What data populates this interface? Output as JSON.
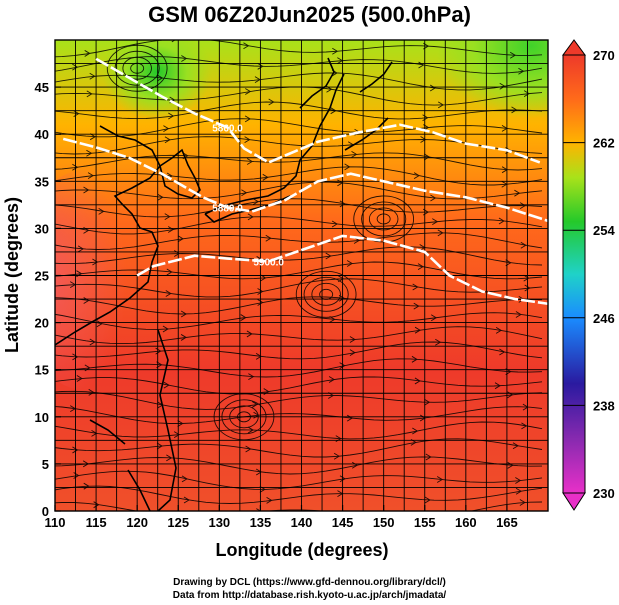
{
  "title": "GSM 06Z20Jun2025 (500.0hPa)",
  "xlabel": "Longitude (degrees)",
  "ylabel": "Latitude  (degrees)",
  "x_ticks": [
    "110",
    "115",
    "120",
    "125",
    "130",
    "135",
    "140",
    "145",
    "150",
    "155",
    "160",
    "165"
  ],
  "y_ticks": [
    "0",
    "5",
    "10",
    "15",
    "20",
    "25",
    "30",
    "35",
    "40",
    "45"
  ],
  "colorbar_ticks": [
    "270",
    "262",
    "254",
    "246",
    "238",
    "230"
  ],
  "contour_labels": [
    "5880.0",
    "5860.0",
    "5900.0"
  ],
  "footer": {
    "line1": "Drawing by DCL (https://www.gfd-dennou.org/library/dcl/)",
    "line2": "Data from http://database.rish.kyoto-u.ac.jp/arch/jmadata/"
  },
  "chart_data": {
    "type": "heatmap",
    "title": "GSM 06Z20Jun2025 (500.0hPa)",
    "xlabel": "Longitude (degrees)",
    "ylabel": "Latitude  (degrees)",
    "xlim": [
      110,
      170
    ],
    "ylim": [
      0,
      50
    ],
    "grid": true,
    "colorbar": {
      "range": [
        230,
        270
      ],
      "ticks": [
        270,
        262,
        254,
        246,
        238,
        230
      ]
    },
    "colors": [
      "#e830c8",
      "#2a1aa0",
      "#1a8cff",
      "#1fd2c8",
      "#25c92a",
      "#a8e21a",
      "#ffb300",
      "#ff6a1a",
      "#ee3a2a"
    ],
    "contours": [
      {
        "label": "5880.0",
        "points": [
          [
            111,
            39.5
          ],
          [
            115,
            38.6
          ],
          [
            119,
            37.5
          ],
          [
            123,
            35.8
          ],
          [
            128,
            33.3
          ],
          [
            131,
            32.2
          ],
          [
            134,
            31.8
          ],
          [
            138,
            33
          ],
          [
            142,
            35
          ],
          [
            146,
            35.8
          ],
          [
            150,
            35
          ],
          [
            155,
            34
          ],
          [
            160,
            33.3
          ],
          [
            165,
            32.2
          ],
          [
            170,
            30.8
          ]
        ]
      },
      {
        "label": "5860.0",
        "points": [
          [
            115,
            48
          ],
          [
            119,
            46
          ],
          [
            123,
            44
          ],
          [
            127,
            42.2
          ],
          [
            131,
            40.7
          ],
          [
            133,
            38.5
          ],
          [
            136,
            37
          ],
          [
            142,
            39.2
          ],
          [
            147,
            40.2
          ],
          [
            152,
            41
          ],
          [
            156,
            40.2
          ],
          [
            160,
            39
          ],
          [
            165,
            38.3
          ],
          [
            169,
            37
          ]
        ]
      },
      {
        "label": "5900.0",
        "points": [
          [
            120,
            25
          ],
          [
            122,
            26
          ],
          [
            127,
            27.1
          ],
          [
            131,
            26.8
          ],
          [
            136,
            26.5
          ],
          [
            141,
            28
          ],
          [
            145,
            29.2
          ],
          [
            150,
            28.7
          ],
          [
            155,
            27.5
          ],
          [
            158,
            25
          ],
          [
            162,
            23.3
          ],
          [
            166,
            22.5
          ],
          [
            170,
            22
          ]
        ]
      }
    ]
  }
}
